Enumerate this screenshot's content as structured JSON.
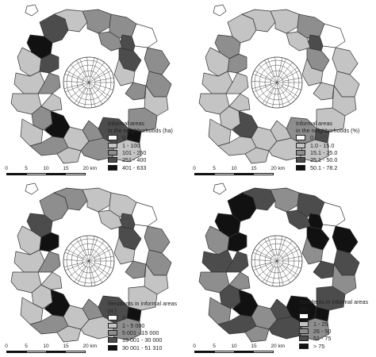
{
  "palette": {
    "c0": "#ffffff",
    "c1": "#c4c4c4",
    "c2": "#8e8e8e",
    "c3": "#4c4c4c",
    "c4": "#111111",
    "stroke": "#333333"
  },
  "maps": [
    {
      "title_line1": "Informal areas",
      "title_line2": "in the neighborhoods (ha)",
      "classes": [
        "0",
        "1 - 100",
        "101 - 250",
        "251 - 400",
        "401 - 633"
      ],
      "colors": [
        3,
        1,
        2,
        4,
        1,
        2,
        0,
        1,
        2,
        1,
        2,
        3,
        2,
        1,
        4,
        1,
        2,
        1,
        3,
        2,
        1,
        2,
        3,
        1,
        2,
        3,
        2,
        1,
        2,
        4,
        1,
        2
      ]
    },
    {
      "title_line1": "Informal areas",
      "title_line2": "in the neighborhoods (%)",
      "classes": [
        "0",
        "1.0 - 15.0",
        "15.1 - 25.0",
        "25.1 - 50.0",
        "50.1 - 78.2"
      ],
      "colors": [
        1,
        1,
        1,
        2,
        1,
        2,
        0,
        1,
        1,
        1,
        1,
        2,
        1,
        1,
        3,
        1,
        1,
        1,
        2,
        1,
        1,
        1,
        3,
        1,
        1,
        2,
        1,
        1,
        1,
        3,
        1,
        1
      ]
    },
    {
      "title_line1": "Residents in informal areas",
      "title_line2": "(n.)",
      "classes": [
        "0",
        "1 - 5 000",
        "5 001 - 15 000",
        "15 001 - 30 000",
        "30 001 - 51 310"
      ],
      "colors": [
        2,
        2,
        1,
        3,
        1,
        1,
        0,
        1,
        2,
        1,
        2,
        3,
        1,
        1,
        4,
        1,
        1,
        2,
        3,
        1,
        1,
        2,
        3,
        1,
        2,
        4,
        2,
        1,
        2,
        4,
        1,
        1
      ]
    },
    {
      "title_line1": "Residents in informal areas",
      "title_line2": "(%)",
      "classes": [
        "0",
        "1 - 25",
        "26 - 50",
        "51 - 75",
        "> 75"
      ],
      "colors": [
        4,
        3,
        2,
        4,
        2,
        3,
        0,
        3,
        4,
        2,
        3,
        4,
        3,
        2,
        4,
        2,
        3,
        2,
        4,
        3,
        2,
        3,
        4,
        2,
        3,
        4,
        3,
        2,
        3,
        4,
        2,
        3
      ]
    }
  ],
  "scale": {
    "ticks": [
      "0",
      "5",
      "10",
      "15",
      "20 km"
    ]
  }
}
